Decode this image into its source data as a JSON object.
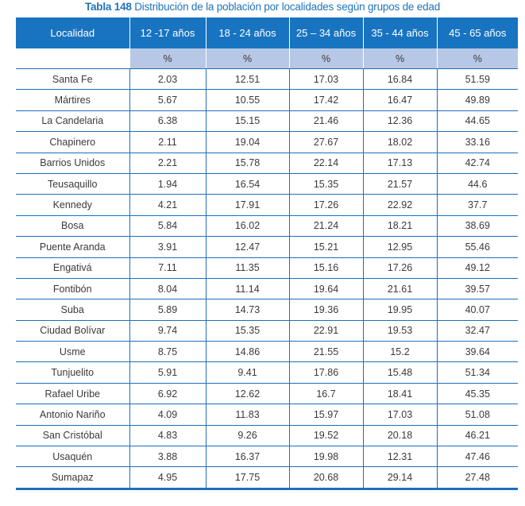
{
  "title": {
    "label": "Tabla 148",
    "text": "Distribución de la población por localidades según grupos de edad"
  },
  "colors": {
    "header_bg": "#1874c1",
    "subheader_bg": "#b7c7e6",
    "rule": "#1f6fb8",
    "title": "#1f73bd"
  },
  "columns": [
    "Localidad",
    "12 -17 años",
    "18 - 24 años",
    "25 – 34 años",
    "35 - 44 años",
    "45 - 65 años"
  ],
  "units": [
    "",
    "%",
    "%",
    "%",
    "%",
    "%"
  ],
  "rows": [
    [
      "Santa Fe",
      "2.03",
      "12.51",
      "17.03",
      "16.84",
      "51.59"
    ],
    [
      "Mártires",
      "5.67",
      "10.55",
      "17.42",
      "16.47",
      "49.89"
    ],
    [
      "La Candelaria",
      "6.38",
      "15.15",
      "21.46",
      "12.36",
      "44.65"
    ],
    [
      "Chapinero",
      "2.11",
      "19.04",
      "27.67",
      "18.02",
      "33.16"
    ],
    [
      "Barrios Unidos",
      "2.21",
      "15.78",
      "22.14",
      "17.13",
      "42.74"
    ],
    [
      "Teusaquillo",
      "1.94",
      "16.54",
      "15.35",
      "21.57",
      "44.6"
    ],
    [
      "Kennedy",
      "4.21",
      "17.91",
      "17.26",
      "22.92",
      "37.7"
    ],
    [
      "Bosa",
      "5.84",
      "16.02",
      "21.24",
      "18.21",
      "38.69"
    ],
    [
      "Puente Aranda",
      "3.91",
      "12.47",
      "15.21",
      "12.95",
      "55.46"
    ],
    [
      "Engativá",
      "7.11",
      "11.35",
      "15.16",
      "17.26",
      "49.12"
    ],
    [
      "Fontibón",
      "8.04",
      "11.14",
      "19.64",
      "21.61",
      "39.57"
    ],
    [
      "Suba",
      "5.89",
      "14.73",
      "19.36",
      "19.95",
      "40.07"
    ],
    [
      "Ciudad Bolívar",
      "9.74",
      "15.35",
      "22.91",
      "19.53",
      "32.47"
    ],
    [
      "Usme",
      "8.75",
      "14.86",
      "21.55",
      "15.2",
      "39.64"
    ],
    [
      "Tunjuelito",
      "5.91",
      "9.41",
      "17.86",
      "15.48",
      "51.34"
    ],
    [
      "Rafael Uribe",
      "6.92",
      "12.62",
      "16.7",
      "18.41",
      "45.35"
    ],
    [
      "Antonio Nariño",
      "4.09",
      "11.83",
      "15.97",
      "17.03",
      "51.08"
    ],
    [
      "San Cristóbal",
      "4.83",
      "9.26",
      "19.52",
      "20.18",
      "46.21"
    ],
    [
      "Usaquén",
      "3.88",
      "16.37",
      "19.98",
      "12.31",
      "47.46"
    ],
    [
      "Sumapaz",
      "4.95",
      "17.75",
      "20.68",
      "29.14",
      "27.48"
    ]
  ]
}
